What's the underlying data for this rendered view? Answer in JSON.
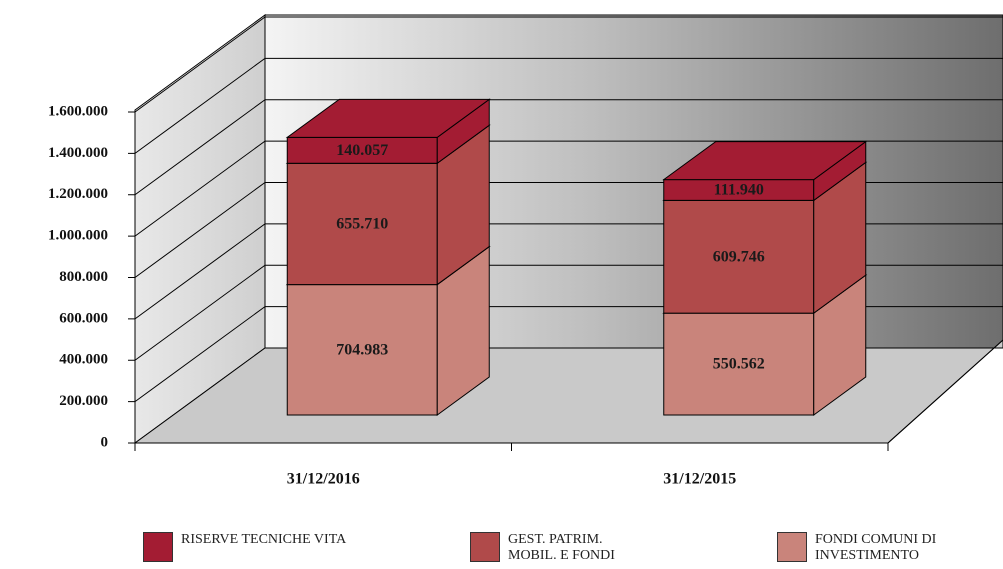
{
  "chart_data": {
    "type": "bar3d_stacked",
    "categories": [
      "31/12/2016",
      "31/12/2015"
    ],
    "series": [
      {
        "name": "RISERVE TECNICHE VITA",
        "color": "#a31c33",
        "values": [
          140057,
          111940
        ],
        "value_labels": [
          "140.057",
          "111.940"
        ]
      },
      {
        "name": "GEST. PATRIM. MOBIL. E FONDI",
        "color": "#b04a4a",
        "values": [
          655710,
          609746
        ],
        "value_labels": [
          "655.710",
          "609.746"
        ]
      },
      {
        "name": "FONDI COMUNI DI INVESTIMENTO",
        "color": "#c9847b",
        "values": [
          704983,
          550562
        ],
        "value_labels": [
          "704.983",
          "550.562"
        ]
      }
    ],
    "ylim": [
      0,
      1600000
    ],
    "yticks": [
      0,
      {
        "value": 200000,
        "label": "200.000"
      },
      {
        "value": 400000,
        "label": "400.000"
      },
      {
        "value": 600000,
        "label": "600.000"
      },
      {
        "value": 800000,
        "label": "800.000"
      },
      {
        "value": 1000000,
        "label": "1.000.000"
      },
      {
        "value": 1200000,
        "label": "1.200.000"
      },
      {
        "value": 1400000,
        "label": "1.400.000"
      },
      {
        "value": 1600000,
        "label": "1.600.000"
      }
    ],
    "grid": true
  }
}
